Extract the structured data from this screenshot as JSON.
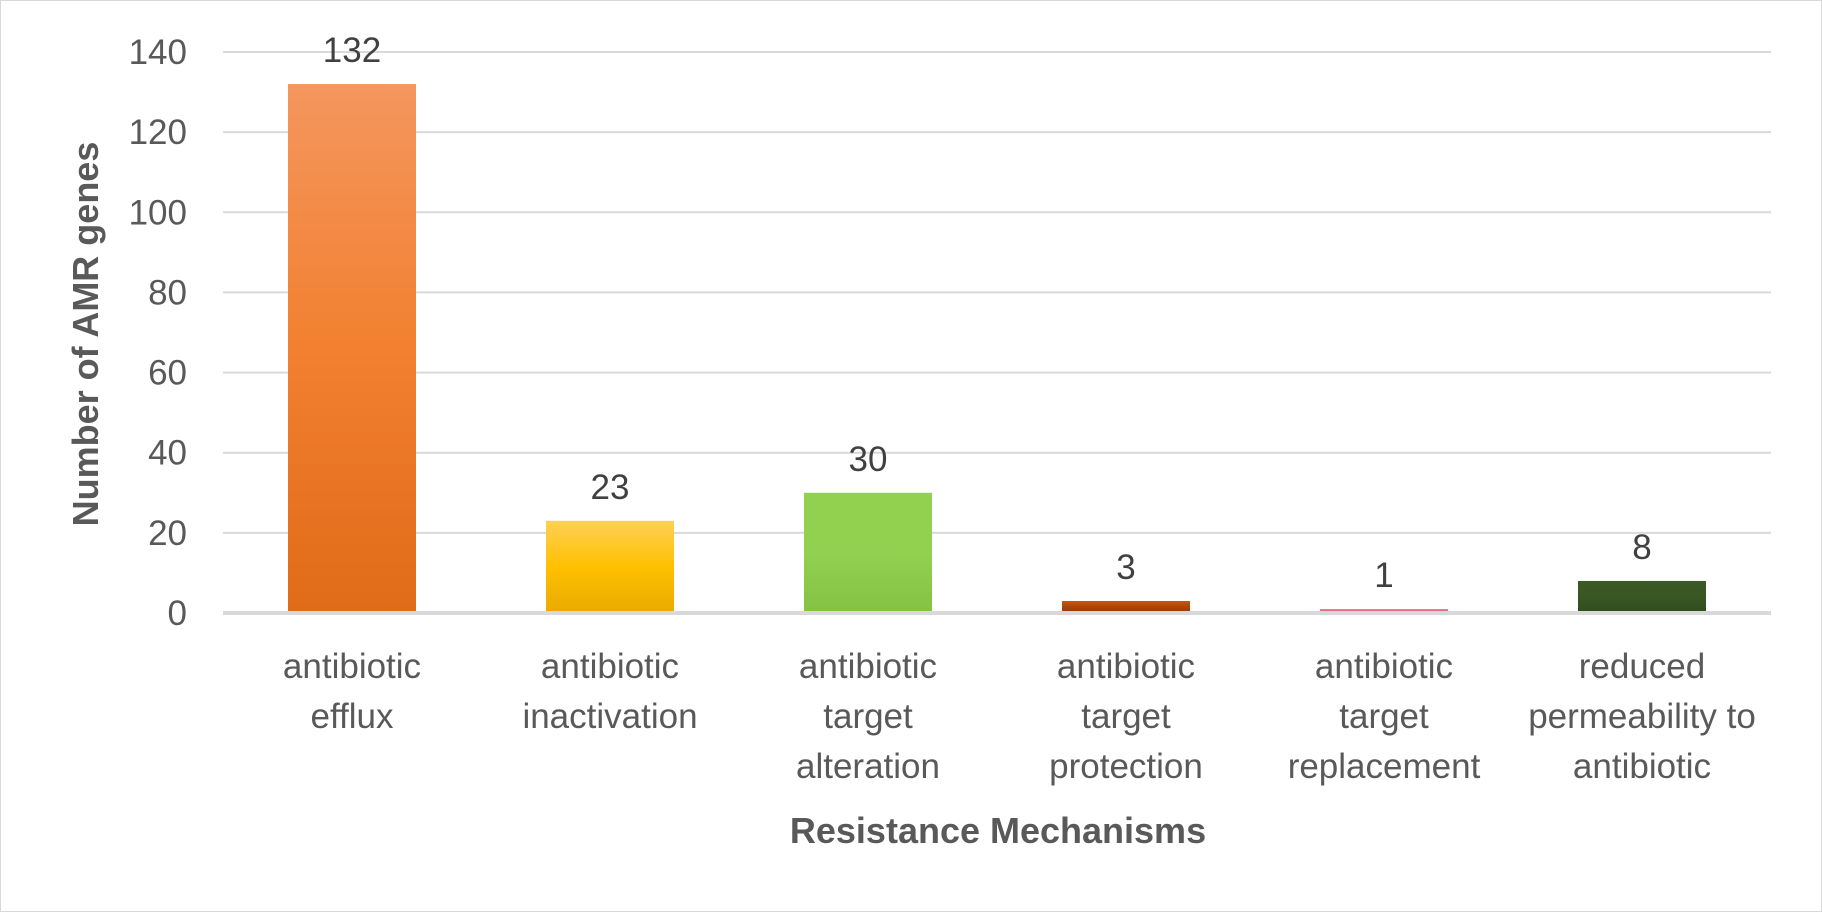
{
  "chart_data": {
    "type": "bar",
    "title": "",
    "xlabel": "Resistance Mechanisms",
    "ylabel": "Number of AMR genes",
    "ylim": [
      0,
      140
    ],
    "yticks": [
      0,
      20,
      40,
      60,
      80,
      100,
      120,
      140
    ],
    "grid": true,
    "legend": "none",
    "categories": [
      [
        "antibiotic",
        "efflux"
      ],
      [
        "antibiotic",
        "inactivation"
      ],
      [
        "antibiotic",
        "target",
        "alteration"
      ],
      [
        "antibiotic",
        "target",
        "protection"
      ],
      [
        "antibiotic",
        "target",
        "replacement"
      ],
      [
        "reduced",
        "permeability to",
        "antibiotic"
      ]
    ],
    "values": [
      132,
      23,
      30,
      3,
      1,
      8
    ],
    "colors": [
      [
        "#f4965e",
        "#f28030",
        "#e06b18"
      ],
      [
        "#ffd055",
        "#ffc000",
        "#e8ab00"
      ],
      [
        "#92d050",
        "#92d050",
        "#84c244"
      ],
      [
        "#c55a11",
        "#a9450a",
        "#933a06"
      ],
      [
        "#f08a9c",
        "#e06080",
        "#d04d6d"
      ],
      [
        "#3a5a25",
        "#385723",
        "#2f4c1e"
      ]
    ]
  }
}
